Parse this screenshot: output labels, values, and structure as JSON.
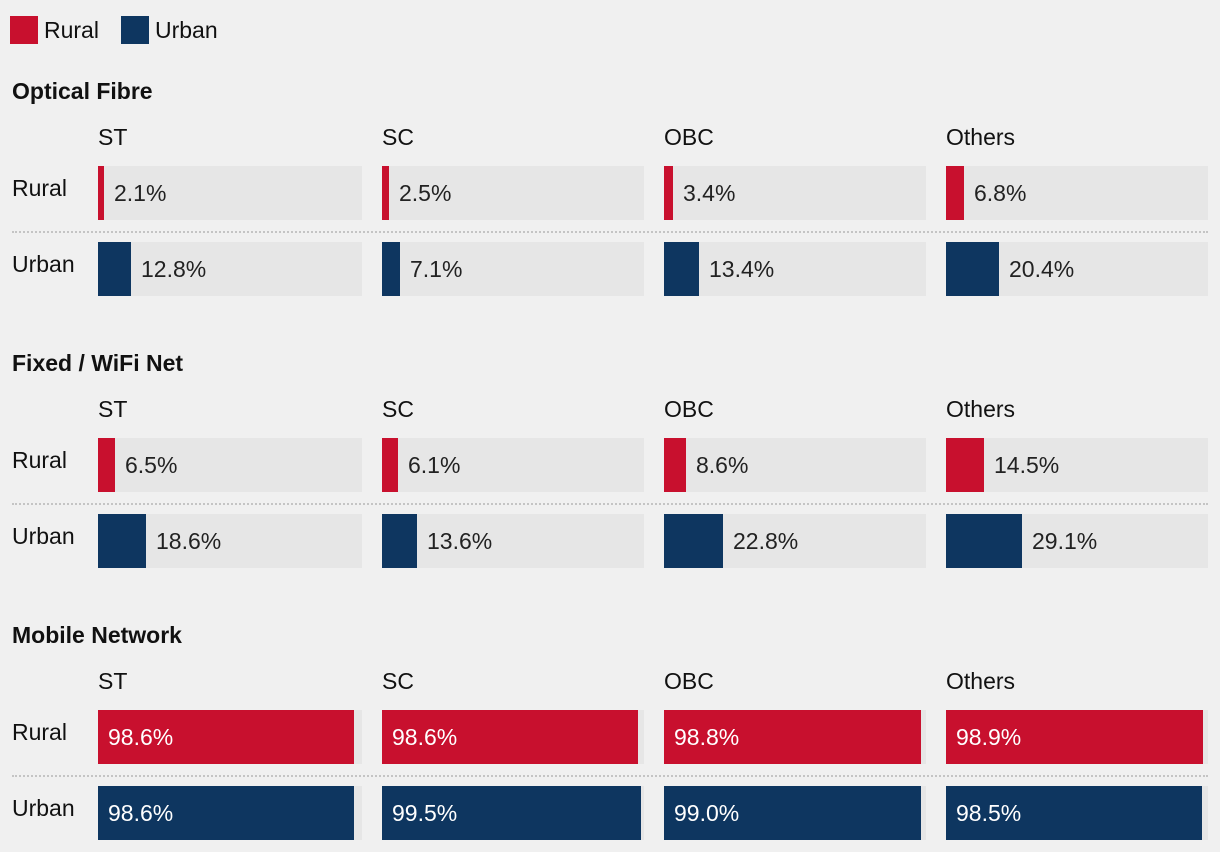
{
  "legend": [
    {
      "label": "Rural",
      "color": "#c8102e"
    },
    {
      "label": "Urban",
      "color": "#0e3660"
    }
  ],
  "chart_data": {
    "type": "bar",
    "title": "",
    "value_unit": "%",
    "range": [
      0,
      100
    ],
    "row_labels": [
      "Rural",
      "Urban"
    ],
    "categories": [
      "ST",
      "SC",
      "OBC",
      "Others"
    ],
    "panels": [
      {
        "title": "Optical Fibre",
        "series": [
          {
            "name": "Rural",
            "values": [
              2.1,
              2.5,
              3.4,
              6.8
            ],
            "labels": [
              "2.1%",
              "2.5%",
              "3.4%",
              "6.8%"
            ]
          },
          {
            "name": "Urban",
            "values": [
              12.8,
              7.1,
              13.4,
              20.4
            ],
            "labels": [
              "12.8%",
              "7.1%",
              "13.4%",
              "20.4%"
            ]
          }
        ]
      },
      {
        "title": "Fixed / WiFi Net",
        "series": [
          {
            "name": "Rural",
            "values": [
              6.5,
              6.1,
              8.6,
              14.5
            ],
            "labels": [
              "6.5%",
              "6.1%",
              "8.6%",
              "14.5%"
            ]
          },
          {
            "name": "Urban",
            "values": [
              18.6,
              13.6,
              22.8,
              29.1
            ],
            "labels": [
              "18.6%",
              "13.6%",
              "22.8%",
              "29.1%"
            ]
          }
        ]
      },
      {
        "title": "Mobile Network",
        "series": [
          {
            "name": "Rural",
            "values": [
              98.6,
              98.6,
              98.8,
              98.9
            ],
            "labels": [
              "98.6%",
              "98.6%",
              "98.8%",
              "98.9%"
            ]
          },
          {
            "name": "Urban",
            "values": [
              98.6,
              99.5,
              99.0,
              98.5
            ],
            "labels": [
              "98.6%",
              "99.5%",
              "99.0%",
              "98.5%"
            ]
          }
        ]
      }
    ]
  }
}
